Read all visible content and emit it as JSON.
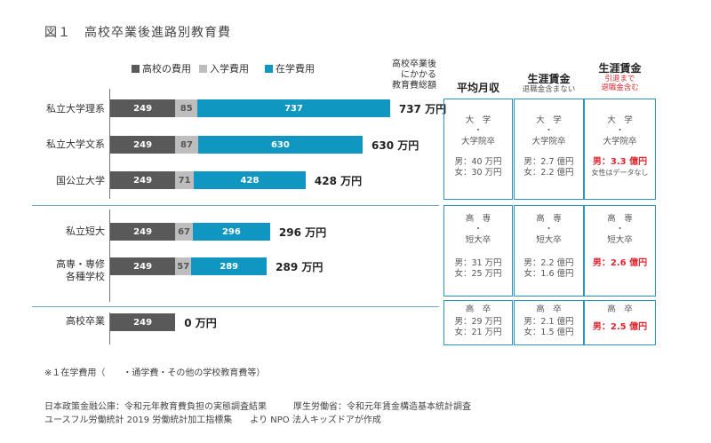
{
  "title": "図１　高校卒業後進路別教育費",
  "legend": [
    {
      "label": "高校の費用",
      "color": "#595959"
    },
    {
      "label": "入学費用",
      "color": "#bdbdbd"
    },
    {
      "label": "在学費用",
      "color": "#0f96c1"
    }
  ],
  "total_header": [
    "高校卒業後",
    "にかかる",
    "教育費総額"
  ],
  "chart_data": {
    "type": "bar",
    "stacked": true,
    "orientation": "horizontal",
    "unit": "万円",
    "categories": [
      "私立大学理系",
      "私立大学文系",
      "国公立大学",
      "私立短大",
      "高専・専修各種学校",
      "高校卒業"
    ],
    "series": [
      {
        "name": "高校の費用",
        "values": [
          249,
          249,
          249,
          249,
          249,
          249
        ]
      },
      {
        "name": "入学費用",
        "values": [
          85,
          87,
          71,
          67,
          57,
          0
        ]
      },
      {
        "name": "在学費用",
        "values": [
          737,
          630,
          428,
          296,
          289,
          0
        ]
      }
    ],
    "totals": [
      "737 万円",
      "630 万円",
      "428 万円",
      "296 万円",
      "289 万円",
      "0 万円"
    ]
  },
  "category_labels": [
    [
      "私立大学理系"
    ],
    [
      "私立大学文系"
    ],
    [
      "国公立大学"
    ],
    [
      "私立短大"
    ],
    [
      "高専・専修",
      "各種学校"
    ],
    [
      "高校卒業"
    ]
  ],
  "columns": [
    {
      "title": "平均月収",
      "sub": []
    },
    {
      "title": "生涯賃金",
      "sub": [
        "退職金含まない"
      ]
    },
    {
      "title": "生涯賃金",
      "sub": [
        "引退まで",
        "退職金含む"
      ]
    }
  ],
  "groups": [
    {
      "level": [
        "大　学",
        "・",
        "大学院卒"
      ],
      "monthly": [
        "男：40 万円",
        "女：30 万円"
      ],
      "lifetime": [
        "男：2.7 億円",
        "女：2.2 億円"
      ],
      "lifetime_retire": [
        "男：3.3 億円"
      ],
      "lifetime_note": "女性はデータなし"
    },
    {
      "level": [
        "高　専",
        "・",
        "短大卒"
      ],
      "monthly": [
        "男：31 万円",
        "女：25 万円"
      ],
      "lifetime": [
        "男：2.2 億円",
        "女：1.6 億円"
      ],
      "lifetime_retire": [
        "男：2.6 億円"
      ],
      "lifetime_note": ""
    },
    {
      "level": [
        "高　卒"
      ],
      "monthly": [
        "男：29 万円",
        "女：21 万円"
      ],
      "lifetime": [
        "男：2.1 億円",
        "女：1.5 億円"
      ],
      "lifetime_retire": [
        "男：2.5 億円"
      ],
      "lifetime_note": ""
    }
  ],
  "footnote": "※１在学費用（　　・通学費・その他の学校教育費等）",
  "sources": [
    "日本政策金融公庫：令和元年教育費負担の実態調査結果　　　厚生労働省：令和元年賃金構造基本統計調査",
    "ユースフル労働統計 2019 労働統計加工指標集　　より NPO 法人キッズドアが作成"
  ]
}
